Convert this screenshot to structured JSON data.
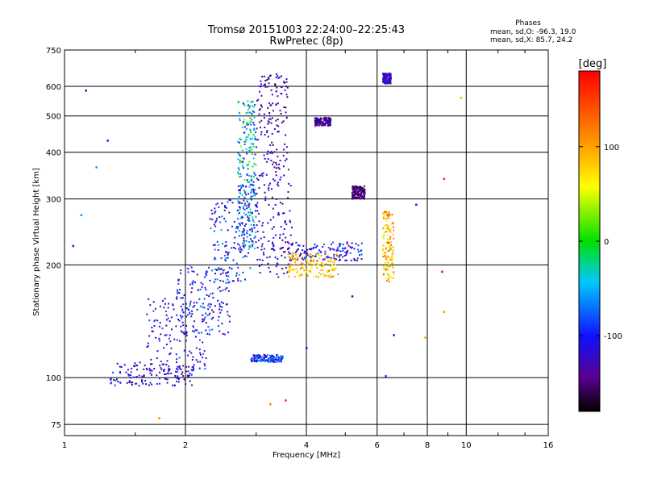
{
  "header": {
    "title": "Tromsø 20151003 22:24:00–22:25:43",
    "subtitle": "RwPretec (8p)"
  },
  "stats": {
    "heading": "Phases",
    "line1": "mean, sd,O: -96.3, 19.0",
    "line2": "mean, sd,X: 85.7, 24.2"
  },
  "colorbar": {
    "label": "[deg]",
    "ticks": [
      {
        "label": "100",
        "value": 100
      },
      {
        "label": "0",
        "value": 0
      },
      {
        "label": "-100",
        "value": -100
      }
    ],
    "range": [
      -180,
      180
    ]
  },
  "chart_data": {
    "type": "scatter",
    "title": "Tromsø 20151003 22:24:00–22:25:43",
    "subtitle": "RwPretec (8p)",
    "xlabel": "Frequency [MHz]",
    "ylabel": "Stationary phase Virtual Height [km]",
    "x_scale": "log",
    "y_scale": "log",
    "xlim": [
      1,
      16
    ],
    "ylim": [
      70,
      750
    ],
    "x_ticks": [
      {
        "label": "1",
        "value": 1
      },
      {
        "label": "2",
        "value": 2
      },
      {
        "label": "4",
        "value": 4
      },
      {
        "label": "6",
        "value": 6
      },
      {
        "label": "8",
        "value": 8
      },
      {
        "label": "10",
        "value": 10
      },
      {
        "label": "16",
        "value": 16
      }
    ],
    "y_ticks": [
      {
        "label": "75",
        "value": 75
      },
      {
        "label": "100",
        "value": 100
      },
      {
        "label": "200",
        "value": 200
      },
      {
        "label": "300",
        "value": 300
      },
      {
        "label": "400",
        "value": 400
      },
      {
        "label": "500",
        "value": 500
      },
      {
        "label": "600",
        "value": 600
      },
      {
        "label": "750",
        "value": 750
      }
    ],
    "grid": true,
    "color_quantity": "phase [deg]",
    "clusters": [
      {
        "f": [
          1.3,
          2.1
        ],
        "h": [
          95,
          110
        ],
        "phase": -120,
        "spread": 40
      },
      {
        "f": [
          1.6,
          2.3
        ],
        "h": [
          105,
          165
        ],
        "phase": -110,
        "spread": 35
      },
      {
        "f": [
          1.9,
          2.6
        ],
        "h": [
          130,
          200
        ],
        "phase": -105,
        "spread": 40
      },
      {
        "f": [
          2.3,
          2.9
        ],
        "h": [
          180,
          300
        ],
        "phase": -100,
        "spread": 45
      },
      {
        "f": [
          2.7,
          3.0
        ],
        "h": [
          330,
          550
        ],
        "phase": -40,
        "spread": 70
      },
      {
        "f": [
          2.7,
          3.0
        ],
        "h": [
          220,
          330
        ],
        "phase": -80,
        "spread": 60
      },
      {
        "f": [
          3.0,
          3.6
        ],
        "h": [
          360,
          650
        ],
        "phase": -130,
        "spread": 30
      },
      {
        "f": [
          3.0,
          3.7
        ],
        "h": [
          185,
          360
        ],
        "phase": -125,
        "spread": 30
      },
      {
        "f": [
          2.9,
          3.5
        ],
        "h": [
          110,
          115
        ],
        "phase": -95,
        "spread": 50
      },
      {
        "f": [
          3.6,
          5.5
        ],
        "h": [
          205,
          230
        ],
        "phase": -110,
        "spread": 35
      },
      {
        "f": [
          5.2,
          5.6
        ],
        "h": [
          300,
          325
        ],
        "phase": -150,
        "spread": 20
      },
      {
        "f": [
          3.6,
          4.8
        ],
        "h": [
          185,
          215
        ],
        "phase": 80,
        "spread": 40
      },
      {
        "f": [
          4.2,
          4.6
        ],
        "h": [
          470,
          495
        ],
        "phase": -140,
        "spread": 25
      },
      {
        "f": [
          6.2,
          6.6
        ],
        "h": [
          180,
          280
        ],
        "phase": 90,
        "spread": 50
      },
      {
        "f": [
          6.2,
          6.5
        ],
        "h": [
          610,
          650
        ],
        "phase": -120,
        "spread": 30
      }
    ],
    "outliers": [
      {
        "x": 1.13,
        "y": 585,
        "phase": -120
      },
      {
        "x": 1.28,
        "y": 430,
        "phase": -120
      },
      {
        "x": 1.2,
        "y": 365,
        "phase": -60
      },
      {
        "x": 1.1,
        "y": 272,
        "phase": -60
      },
      {
        "x": 1.05,
        "y": 225,
        "phase": -120
      },
      {
        "x": 6.3,
        "y": 101,
        "phase": -90
      },
      {
        "x": 6.6,
        "y": 130,
        "phase": -100
      },
      {
        "x": 7.5,
        "y": 290,
        "phase": -110
      },
      {
        "x": 8.8,
        "y": 340,
        "phase": 160
      },
      {
        "x": 8.7,
        "y": 192,
        "phase": 175
      },
      {
        "x": 9.7,
        "y": 560,
        "phase": 90
      },
      {
        "x": 8.8,
        "y": 150,
        "phase": 110
      },
      {
        "x": 5.2,
        "y": 165,
        "phase": -130
      },
      {
        "x": 7.9,
        "y": 128,
        "phase": 100
      },
      {
        "x": 3.25,
        "y": 85,
        "phase": 120
      },
      {
        "x": 3.55,
        "y": 87,
        "phase": 160
      },
      {
        "x": 1.72,
        "y": 78,
        "phase": 110
      },
      {
        "x": 4.0,
        "y": 120,
        "phase": -110
      }
    ]
  }
}
